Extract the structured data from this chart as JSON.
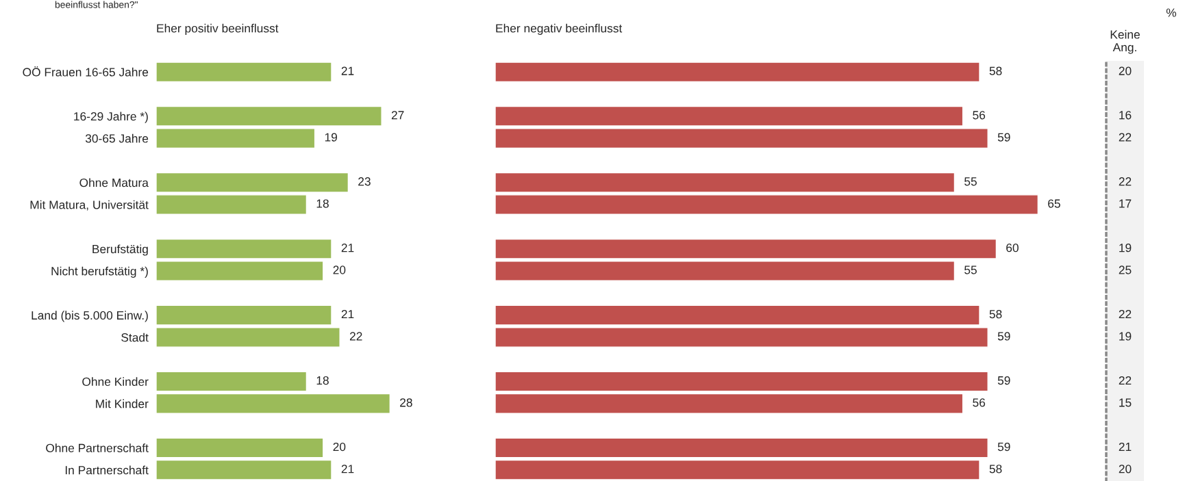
{
  "chart_data": [
    {
      "type": "bar",
      "orientation": "horizontal",
      "title": "Eher positiv beeinflusst",
      "annotations": [
        "beeinflusst haben?\""
      ],
      "categories": [
        "OÖ Frauen 16-65 Jahre",
        null,
        "16-29 Jahre *)",
        "30-65 Jahre",
        null,
        "Ohne Matura",
        "Mit Matura, Universität",
        null,
        "Berufstätig",
        "Nicht berufstätig *)",
        null,
        "Land (bis 5.000 Einw.)",
        "Stadt",
        null,
        "Ohne Kinder",
        "Mit Kinder",
        null,
        "Ohne Partnerschaft",
        "In Partnerschaft"
      ],
      "values": [
        21,
        null,
        27,
        19,
        null,
        23,
        18,
        null,
        21,
        20,
        null,
        21,
        22,
        null,
        18,
        28,
        null,
        20,
        21
      ],
      "color": "#9bbb59",
      "data_labels": true,
      "tick_labels": "y",
      "grid": false,
      "legend": false
    },
    {
      "type": "bar",
      "orientation": "horizontal",
      "title": "Eher negativ beeinflusst",
      "categories": [
        null,
        null,
        null,
        null,
        null,
        null,
        null,
        null,
        null,
        null,
        null,
        null,
        null,
        null,
        null,
        null,
        null,
        null,
        null
      ],
      "values": [
        58,
        null,
        56,
        59,
        null,
        55,
        65,
        null,
        60,
        55,
        null,
        58,
        59,
        null,
        59,
        56,
        null,
        59,
        58
      ],
      "color": "#c0504d",
      "data_labels": true,
      "tick_labels": false,
      "grid": false,
      "legend": false
    },
    {
      "type": "other",
      "title": "Keine\nAng.",
      "annotations": [
        "%"
      ],
      "values": [
        20,
        null,
        16,
        22,
        null,
        22,
        17,
        null,
        19,
        25,
        null,
        22,
        19,
        null,
        22,
        15,
        null,
        21,
        20
      ],
      "value_labels": [
        "20",
        null,
        "16",
        "22",
        null,
        "22",
        "17",
        null,
        "19",
        "25",
        null,
        "22",
        "19",
        null,
        "22",
        "15",
        null,
        "21",
        "20"
      ]
    }
  ]
}
